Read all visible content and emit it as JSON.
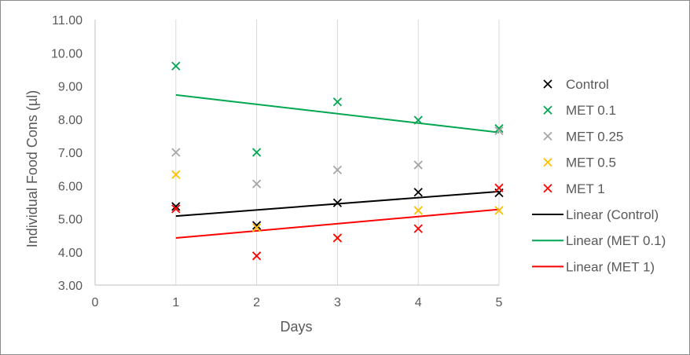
{
  "chart_data": {
    "type": "scatter",
    "xlabel": "Days",
    "ylabel": "Individual Food Cons (µl)",
    "xlim": [
      0,
      5
    ],
    "ylim": [
      3,
      11
    ],
    "x_ticks": [
      "0",
      "1",
      "2",
      "3",
      "4",
      "5"
    ],
    "y_ticks": [
      "3.00",
      "4.00",
      "5.00",
      "6.00",
      "7.00",
      "8.00",
      "9.00",
      "10.00",
      "11.00"
    ],
    "grid": "vertical",
    "legend_position": "right",
    "series": [
      {
        "name": "Control",
        "color": "#000000",
        "x": [
          1,
          2,
          3,
          4,
          5
        ],
        "y": [
          5.37,
          4.8,
          5.48,
          5.8,
          5.78
        ]
      },
      {
        "name": "MET 0.1",
        "color": "#00a650",
        "x": [
          1,
          2,
          3,
          4,
          5
        ],
        "y": [
          9.6,
          7.0,
          8.52,
          7.97,
          7.72
        ]
      },
      {
        "name": "MET 0.25",
        "color": "#a6a6a6",
        "x": [
          1,
          2,
          3,
          4,
          5
        ],
        "y": [
          7.0,
          6.05,
          6.47,
          6.62,
          7.65
        ]
      },
      {
        "name": "MET 0.5",
        "color": "#ffc000",
        "x": [
          1,
          2,
          3,
          4,
          5
        ],
        "y": [
          6.33,
          4.73,
          4.42,
          5.25,
          5.25
        ]
      },
      {
        "name": "MET 1",
        "color": "#ff0000",
        "x": [
          1,
          2,
          3,
          4,
          5
        ],
        "y": [
          5.3,
          3.88,
          4.42,
          4.7,
          5.93
        ]
      }
    ],
    "trendlines": [
      {
        "name": "Linear (Control)",
        "color": "#000000",
        "x": [
          1,
          5
        ],
        "y": [
          5.08,
          5.82
        ]
      },
      {
        "name": "Linear (MET 0.1)",
        "color": "#00a650",
        "x": [
          1,
          5
        ],
        "y": [
          8.73,
          7.6
        ]
      },
      {
        "name": "Linear (MET 1)",
        "color": "#ff0000",
        "x": [
          1,
          5
        ],
        "y": [
          4.42,
          5.28
        ]
      }
    ]
  }
}
